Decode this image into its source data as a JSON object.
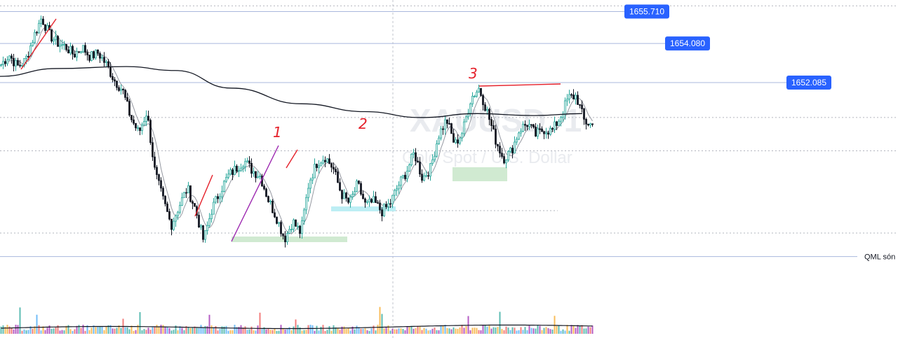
{
  "chart_data": {
    "type": "candlestick",
    "symbol": "XAUUSD, 1",
    "subtitle": "Gold Spot / U.S. Dollar",
    "ylim": [
      1640.9,
      1656.3
    ],
    "price_tags": [
      {
        "label": "1655.710",
        "value": 1655.71
      },
      {
        "label": "1654.080",
        "value": 1654.08
      },
      {
        "label": "1652.085",
        "value": 1652.085
      }
    ],
    "horizontal_lines": [
      {
        "name": "qml",
        "label": "QML són",
        "value": 1643.2,
        "style": "solid"
      }
    ],
    "dotted_levels": [
      1656.0,
      1650.3,
      1648.6,
      1644.4
    ],
    "wave_labels": [
      "1",
      "2",
      "3"
    ],
    "colors": {
      "up": "#26a69a",
      "down": "#131722",
      "ma_long": "#131722",
      "ma_short": "#9598a1",
      "tag": "#2962ff",
      "hline": "#a9b8dd",
      "trend_red": "#e5202a",
      "trend_purple": "#9c27b0",
      "zone_green": "#c8e6c9",
      "zone_cyan": "#b2ebf2"
    },
    "close_anchors": [
      1653.0,
      1653.5,
      1652.9,
      1653.2,
      1654.4,
      1655.4,
      1654.5,
      1654.1,
      1653.9,
      1653.5,
      1653.9,
      1653.4,
      1653.6,
      1653.0,
      1652.2,
      1651.7,
      1650.3,
      1649.5,
      1650.6,
      1647.5,
      1646.1,
      1644.8,
      1645.8,
      1646.7,
      1645.6,
      1644.0,
      1645.6,
      1646.5,
      1647.3,
      1647.7,
      1648.1,
      1647.6,
      1647.3,
      1646.1,
      1645.2,
      1644.1,
      1645.0,
      1644.4,
      1647.0,
      1648.0,
      1648.3,
      1647.7,
      1646.4,
      1645.9,
      1646.9,
      1645.8,
      1646.0,
      1645.5,
      1645.9,
      1646.8,
      1647.5,
      1648.5,
      1647.2,
      1647.7,
      1649.4,
      1650.2,
      1648.9,
      1649.6,
      1651.3,
      1651.8,
      1650.6,
      1649.2,
      1648.2,
      1648.6,
      1649.7,
      1650.0,
      1649.4,
      1649.7,
      1649.6,
      1650.3,
      1651.3,
      1651.4,
      1650.1,
      1649.9
    ]
  }
}
